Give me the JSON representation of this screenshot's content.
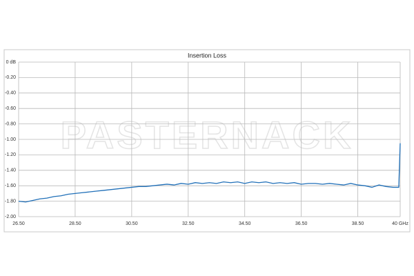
{
  "chart_data": {
    "type": "line",
    "title": "Insertion Loss",
    "watermark": "PASTERNACK",
    "x": [
      26.5,
      26.75,
      27.0,
      27.25,
      27.5,
      27.75,
      28.0,
      28.25,
      28.5,
      28.75,
      29.0,
      29.25,
      29.5,
      29.75,
      30.0,
      30.25,
      30.5,
      30.75,
      31.0,
      31.25,
      31.5,
      31.75,
      32.0,
      32.25,
      32.5,
      32.75,
      33.0,
      33.25,
      33.5,
      33.75,
      34.0,
      34.25,
      34.5,
      34.75,
      35.0,
      35.25,
      35.5,
      35.75,
      36.0,
      36.25,
      36.5,
      36.75,
      37.0,
      37.25,
      37.5,
      37.75,
      38.0,
      38.25,
      38.5,
      38.75,
      39.0,
      39.25,
      39.5,
      39.75,
      39.95,
      40.0
    ],
    "series": [
      {
        "color": "#1f6fb8",
        "values": [
          -1.8,
          -1.81,
          -1.79,
          -1.77,
          -1.76,
          -1.74,
          -1.73,
          -1.71,
          -1.7,
          -1.69,
          -1.68,
          -1.67,
          -1.66,
          -1.65,
          -1.64,
          -1.63,
          -1.62,
          -1.61,
          -1.61,
          -1.6,
          -1.59,
          -1.58,
          -1.59,
          -1.57,
          -1.58,
          -1.56,
          -1.57,
          -1.56,
          -1.57,
          -1.55,
          -1.56,
          -1.55,
          -1.57,
          -1.55,
          -1.56,
          -1.55,
          -1.57,
          -1.56,
          -1.57,
          -1.56,
          -1.58,
          -1.57,
          -1.57,
          -1.58,
          -1.57,
          -1.58,
          -1.59,
          -1.57,
          -1.59,
          -1.6,
          -1.62,
          -1.59,
          -1.61,
          -1.62,
          -1.62,
          -1.05
        ]
      }
    ],
    "xlim": [
      26.5,
      40
    ],
    "xticks": [
      {
        "value": 26.5,
        "label": "26.50"
      },
      {
        "value": 28.5,
        "label": "28.50"
      },
      {
        "value": 30.5,
        "label": "30.50"
      },
      {
        "value": 32.5,
        "label": "32.50"
      },
      {
        "value": 34.5,
        "label": "34.50"
      },
      {
        "value": 36.5,
        "label": "36.50"
      },
      {
        "value": 38.5,
        "label": "38.50"
      },
      {
        "value": 40,
        "label": "40 GHz"
      }
    ],
    "ylim": [
      -2,
      0
    ],
    "yticks": [
      {
        "value": 0,
        "label": "0 dB"
      },
      {
        "value": -0.2,
        "label": "-0.20"
      },
      {
        "value": -0.4,
        "label": "-0.40"
      },
      {
        "value": -0.6,
        "label": "-0.60"
      },
      {
        "value": -0.8,
        "label": "-0.80"
      },
      {
        "value": -1.0,
        "label": "-1.00"
      },
      {
        "value": -1.2,
        "label": "-1.20"
      },
      {
        "value": -1.4,
        "label": "-1.40"
      },
      {
        "value": -1.6,
        "label": "-1.60"
      },
      {
        "value": -1.8,
        "label": "-1.80"
      },
      {
        "value": -2.0,
        "label": "-2.00"
      }
    ],
    "grid": true
  }
}
